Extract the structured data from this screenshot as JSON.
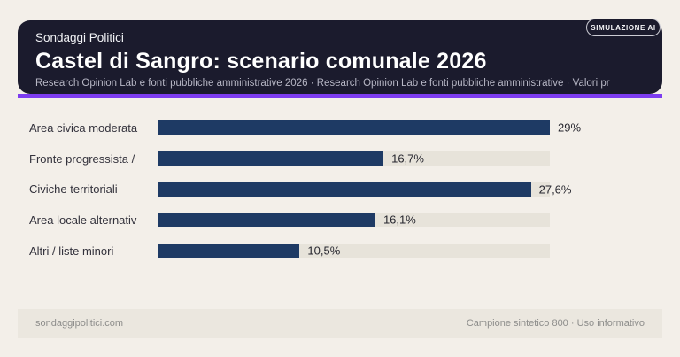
{
  "badge": {
    "label": "SIMULAZIONE AI"
  },
  "header": {
    "kicker": "Sondaggi Politici",
    "title": "Castel di Sangro: scenario comunale 2026",
    "subtitle": "Research Opinion Lab e fonti pubbliche amministrative 2026 · Research Opinion Lab e fonti pubbliche amministrative · Valori pr"
  },
  "chart_data": {
    "type": "bar",
    "orientation": "horizontal",
    "title": "Castel di Sangro: scenario comunale 2026",
    "categories": [
      "Area civica moderata",
      "Fronte progressista /",
      "Civiche territoriali",
      "Area locale alternativ",
      "Altri / liste minori"
    ],
    "values": [
      29,
      16.7,
      27.6,
      16.1,
      10.5
    ],
    "value_labels": [
      "29%",
      "16,7%",
      "27,6%",
      "16,1%",
      "10,5%"
    ],
    "unit": "%",
    "xlim": [
      0,
      29
    ],
    "grid": false,
    "legend": false,
    "bar_color": "#1e3a64",
    "track_color": "#e7e3da"
  },
  "footer": {
    "left": "sondaggipolitici.com",
    "right": "Campione sintetico 800 · Uso informativo"
  },
  "colors": {
    "page_bg": "#f3efe9",
    "card_bg": "#1b1b2d",
    "accent": "#7d3cf0",
    "footer_bg": "#ebe7df"
  }
}
